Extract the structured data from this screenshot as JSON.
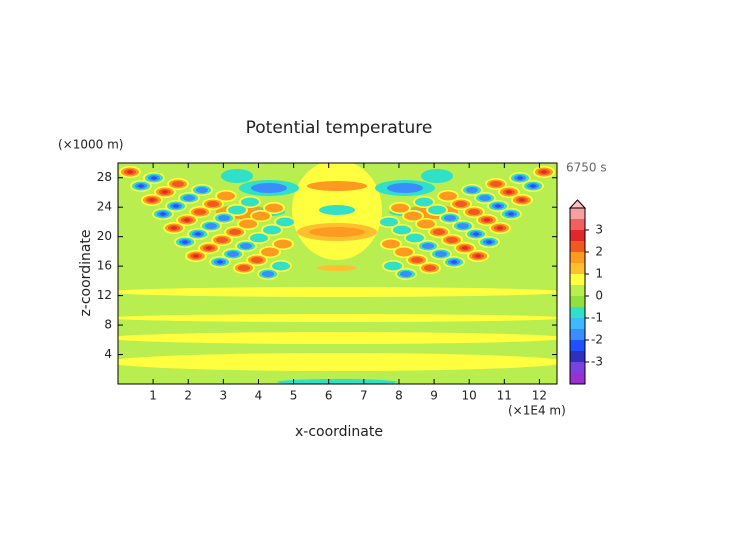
{
  "chart_data": {
    "type": "contour",
    "title": "Potential temperature",
    "time_label": "6750 s",
    "xlabel": "x-coordinate",
    "ylabel": "z-coordinate",
    "x_unit": "(×1E4 m)",
    "y_unit": "(×1000 m)",
    "xlim": [
      0,
      12.5
    ],
    "xticks": [
      1,
      2,
      3,
      4,
      5,
      6,
      7,
      8,
      9,
      10,
      11,
      12
    ],
    "ylim": [
      0,
      30
    ],
    "yticks": [
      4,
      8,
      12,
      16,
      20,
      24,
      28
    ],
    "colorbar": {
      "lim": [
        -4,
        4
      ],
      "ticks": [
        -3,
        -2,
        -1,
        0,
        1,
        2,
        3
      ],
      "levels": [
        -4,
        -3.5,
        -3,
        -2.5,
        -2,
        -1.5,
        -1,
        -0.5,
        0,
        0.5,
        1,
        1.5,
        2,
        2.5,
        3,
        3.5,
        4
      ],
      "colors": [
        "#9a30d0",
        "#7a40e0",
        "#3030c0",
        "#2050ff",
        "#3a8cff",
        "#40b8ff",
        "#30e0c8",
        "#90e040",
        "#b8ee50",
        "#ffff40",
        "#ffc030",
        "#ff9a20",
        "#f05a20",
        "#e02828",
        "#f06060",
        "#f8a0a0"
      ],
      "extend_color": "#ffc0c0"
    }
  }
}
